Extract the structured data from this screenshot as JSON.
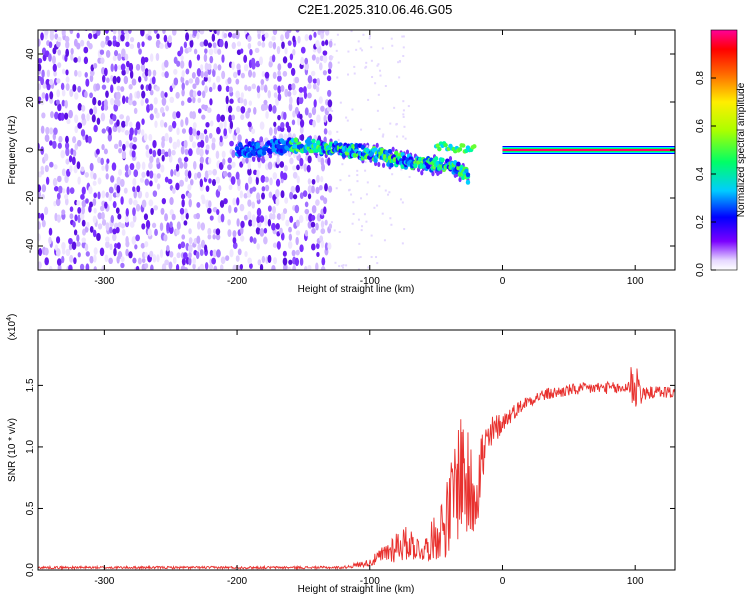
{
  "title": "C2E1.2025.310.06.46.G05",
  "colors": {
    "snr_line": "#e8312e",
    "axes": "#000000"
  },
  "chart_data": [
    {
      "type": "heatmap",
      "name": "spectrogram",
      "xlabel": "Height of straight line (km)",
      "ylabel": "Frequency (Hz)",
      "xlim": [
        -350,
        130
      ],
      "ylim": [
        -50,
        50
      ],
      "xticks": [
        -300,
        -200,
        -100,
        0,
        100
      ],
      "xtick_labels": [
        "-300",
        "-200",
        "-100",
        "0",
        "100"
      ],
      "yticks": [
        -40,
        -20,
        0,
        20,
        40
      ],
      "ytick_labels": [
        "-40",
        "-20",
        "0",
        "20",
        "40"
      ],
      "colorbar": {
        "label": "Normalized spectral amplitude",
        "range": [
          0.0,
          1.0
        ],
        "ticks": [
          0.0,
          0.2,
          0.4,
          0.6,
          0.8
        ],
        "tick_labels": [
          "0.0",
          "0.2",
          "0.4",
          "0.6",
          "0.8"
        ]
      },
      "features": {
        "noise_region_x": [
          -350,
          -130
        ],
        "signal_track": [
          [
            -200,
            0
          ],
          [
            -150,
            2
          ],
          [
            -120,
            0
          ],
          [
            -100,
            -1
          ],
          [
            -80,
            -4
          ],
          [
            -60,
            -6
          ],
          [
            -40,
            -6
          ],
          [
            -30,
            -9
          ],
          [
            -25,
            -11
          ]
        ],
        "upper_branch": [
          [
            -50,
            2
          ],
          [
            -40,
            1
          ],
          [
            -20,
            0
          ]
        ],
        "tone_x_start": 0,
        "tone_frequency_hz": 0
      }
    },
    {
      "type": "line",
      "name": "snr",
      "xlabel": "Height of straight line (km)",
      "ylabel": "SNR (10 * v/v)",
      "scale_label_prefix": "(x10",
      "scale_label_exp": "4",
      "scale_label_suffix": ")",
      "xlim": [
        -350,
        130
      ],
      "ylim": [
        0,
        1.95
      ],
      "xticks": [
        -300,
        -200,
        -100,
        0,
        100
      ],
      "xtick_labels": [
        "-300",
        "-200",
        "-100",
        "0",
        "100"
      ],
      "yticks": [
        0.0,
        0.5,
        1.0,
        1.5
      ],
      "ytick_labels": [
        "0.0",
        "0.5",
        "1.0",
        "1.5"
      ],
      "series": [
        {
          "name": "SNR",
          "x": [
            -350,
            -300,
            -250,
            -200,
            -150,
            -120,
            -100,
            -90,
            -80,
            -70,
            -60,
            -50,
            -40,
            -35,
            -30,
            -25,
            -20,
            -15,
            -10,
            -5,
            0,
            10,
            20,
            30,
            40,
            50,
            60,
            70,
            80,
            90,
            95,
            100,
            105,
            110,
            120,
            130
          ],
          "y": [
            0.02,
            0.02,
            0.02,
            0.02,
            0.02,
            0.02,
            0.06,
            0.12,
            0.2,
            0.22,
            0.15,
            0.28,
            0.45,
            0.7,
            0.85,
            0.6,
            0.7,
            0.9,
            1.05,
            1.15,
            1.2,
            1.3,
            1.38,
            1.42,
            1.44,
            1.46,
            1.47,
            1.48,
            1.48,
            1.47,
            1.5,
            1.55,
            1.42,
            1.44,
            1.45,
            1.44
          ],
          "noise_amplitude": [
            0.01,
            0.01,
            0.01,
            0.01,
            0.01,
            0.01,
            0.03,
            0.08,
            0.14,
            0.14,
            0.08,
            0.2,
            0.35,
            0.5,
            0.55,
            0.45,
            0.4,
            0.3,
            0.2,
            0.12,
            0.08,
            0.06,
            0.05,
            0.05,
            0.05,
            0.05,
            0.05,
            0.05,
            0.05,
            0.05,
            0.06,
            0.35,
            0.06,
            0.05,
            0.05,
            0.05
          ]
        }
      ]
    }
  ]
}
